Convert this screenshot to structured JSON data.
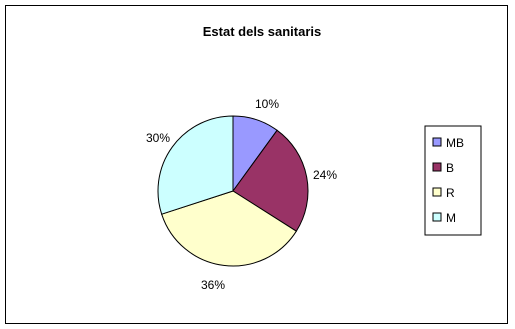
{
  "chart_data": {
    "type": "pie",
    "title": "Estat dels sanitaris",
    "categories": [
      "MB",
      "B",
      "R",
      "M"
    ],
    "values": [
      10,
      24,
      36,
      30
    ],
    "value_labels": [
      "10%",
      "24%",
      "36%",
      "30%"
    ],
    "colors": [
      "#9999ff",
      "#993366",
      "#ffffcc",
      "#ccffff"
    ],
    "legend_position": "right"
  }
}
